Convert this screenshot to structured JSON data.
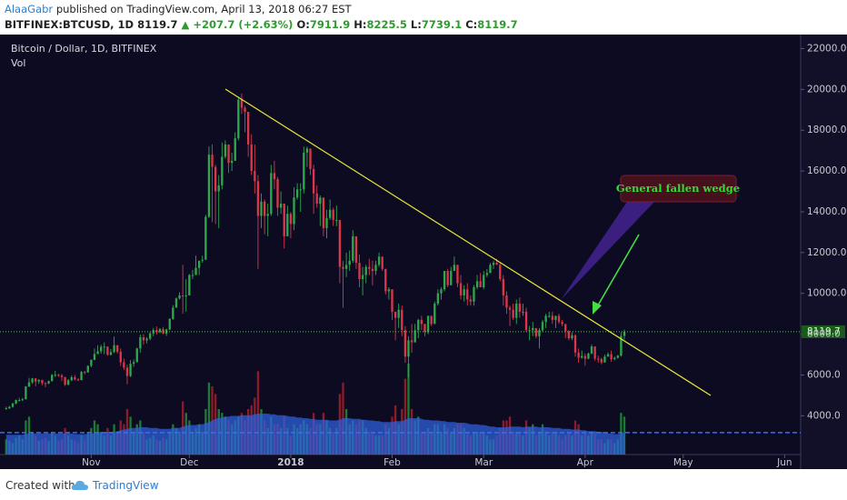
{
  "header": {
    "publisher": "AlaaGabr",
    "published_text": "published on TradingView.com, April 13, 2018 06:27 EST",
    "symbol": "BITFINEX:BTCUSD, 1D",
    "change": "▲ +207.7 (+2.63%)",
    "ohlc_labels": [
      "O:",
      "H:",
      "L:",
      "C:"
    ]
  },
  "footer": {
    "created_with": "Created with",
    "brand": "TradingView"
  },
  "chart_data": {
    "type": "candlestick",
    "title": "Bitcoin / Dollar, 1D, BITFINEX",
    "volume_label": "Vol",
    "annotation": "General fallen wedge",
    "up_color": "#2ea84a",
    "down_color": "#d9374a",
    "volume_up_color": "#1d7a34",
    "volume_down_color": "#8c1c2c",
    "volume_ma_color": "#2f63e0",
    "xlim": [
      -0.5,
      242.9
    ],
    "xticks": [
      {
        "value": 26,
        "label": "Nov"
      },
      {
        "value": 56,
        "label": "Dec"
      },
      {
        "value": 87,
        "label": "2018"
      },
      {
        "value": 118,
        "label": "Feb"
      },
      {
        "value": 146,
        "label": "Mar"
      },
      {
        "value": 177,
        "label": "Apr"
      },
      {
        "value": 207,
        "label": "May"
      },
      {
        "value": 238,
        "label": "Jun"
      }
    ],
    "ylim": [
      2100,
      22600
    ],
    "yticks": [
      {
        "value": 4000,
        "label": "4000.0"
      },
      {
        "value": 6000,
        "label": "6000.0"
      },
      {
        "value": 8000,
        "label": "8000.0"
      },
      {
        "value": 10000,
        "label": "10000.0"
      },
      {
        "value": 12000,
        "label": "12000.0"
      },
      {
        "value": 14000,
        "label": "14000.0"
      },
      {
        "value": 16000,
        "label": "16000.0"
      },
      {
        "value": 18000,
        "label": "18000.0"
      },
      {
        "value": 20000,
        "label": "20000.0"
      },
      {
        "value": 22000,
        "label": "22000.0"
      }
    ],
    "vlim": [
      0,
      150
    ],
    "open": [
      4350,
      4370,
      4440,
      4600,
      4770,
      4770,
      4810,
      5440,
      5640,
      5830,
      5680,
      5750,
      5600,
      5580,
      5700,
      6000,
      6010,
      5980,
      5900,
      5520,
      5740,
      5890,
      5780,
      5750,
      6150,
      6130,
      6450,
      6740,
      7030,
      7160,
      7380,
      7390,
      6990,
      7120,
      7460,
      7140,
      6620,
      6360,
      5950,
      6550,
      6630,
      7300,
      7850,
      7700,
      7780,
      8040,
      8200,
      8100,
      8250,
      8030,
      8230,
      8750,
      9300,
      9750,
      9900,
      9850,
      9900,
      10900,
      10900,
      11250,
      11600,
      11650,
      13750,
      16800,
      16200,
      15000,
      15300,
      16700,
      17300,
      16400,
      16500,
      17600,
      19500,
      19100,
      18900,
      17300,
      16000,
      15500,
      13800,
      14500,
      13800,
      13900,
      15900,
      15600,
      14200,
      14400,
      12800,
      13900,
      13400,
      14700,
      15100,
      15100,
      16900,
      17100,
      16100,
      14900,
      14400,
      14700,
      13200,
      13700,
      14100,
      13600,
      13600,
      11300,
      11200,
      11400,
      11600,
      12800,
      11500,
      10700,
      10900,
      11300,
      11200,
      11100,
      11400,
      11800,
      11200,
      10100,
      10200,
      9100,
      8800,
      9200,
      8200,
      6900,
      7700,
      7600,
      8200,
      8700,
      8500,
      8100,
      8900,
      8500,
      9500,
      10000,
      10200,
      11100,
      10400,
      11100,
      11400,
      10500,
      9900,
      10200,
      9700,
      9600,
      10300,
      10600,
      10300,
      10900,
      11000,
      11400,
      11500,
      11400,
      10700,
      9900,
      9300,
      9200,
      8800,
      9500,
      9100,
      9100,
      8200,
      8200,
      8300,
      7900,
      8200,
      8600,
      8900,
      8900,
      8700,
      8900,
      8600,
      8500,
      8150,
      7800,
      7950,
      7100,
      6850,
      6930,
      6800,
      7050,
      7400,
      6800,
      6780,
      6620,
      6900,
      7020,
      6780,
      6840,
      6950,
      7911.9
    ],
    "high": [
      4450,
      4480,
      4640,
      4800,
      4880,
      4880,
      5450,
      5860,
      5860,
      5850,
      5800,
      5770,
      5650,
      5730,
      6050,
      6200,
      6060,
      6050,
      5900,
      5800,
      5980,
      6000,
      5850,
      6200,
      6200,
      6470,
      6760,
      7300,
      7460,
      7480,
      7600,
      7400,
      7270,
      7880,
      7450,
      7300,
      6800,
      6500,
      6730,
      6760,
      7330,
      7980,
      8000,
      7850,
      8100,
      8300,
      8380,
      8300,
      8350,
      8270,
      8780,
      9430,
      9800,
      10050,
      11400,
      10700,
      10950,
      11150,
      11850,
      11600,
      11850,
      13850,
      17200,
      17300,
      16300,
      15800,
      17400,
      17500,
      17300,
      16900,
      17900,
      19600,
      19800,
      19200,
      18900,
      17800,
      17300,
      15800,
      14900,
      14600,
      14400,
      16300,
      16500,
      15700,
      15000,
      14400,
      14300,
      14000,
      15200,
      15400,
      15400,
      17200,
      17200,
      17100,
      16300,
      15300,
      14800,
      14700,
      14100,
      14600,
      14200,
      14300,
      13600,
      11600,
      12000,
      12100,
      13100,
      12800,
      11900,
      11300,
      11400,
      11700,
      11600,
      11600,
      12000,
      11800,
      11200,
      10300,
      10200,
      9100,
      9500,
      9400,
      8400,
      7900,
      8500,
      8500,
      8750,
      8900,
      8500,
      8900,
      8900,
      9600,
      10200,
      10300,
      11100,
      11200,
      11300,
      11800,
      11400,
      10900,
      10400,
      10500,
      9900,
      10400,
      10900,
      11000,
      11100,
      11200,
      11500,
      11600,
      11700,
      11500,
      10900,
      10100,
      9400,
      9500,
      9700,
      9800,
      9500,
      9300,
      8400,
      8600,
      8300,
      8300,
      8700,
      9000,
      9100,
      9100,
      8900,
      9000,
      8700,
      8500,
      8200,
      8100,
      8000,
      7300,
      7200,
      7050,
      7100,
      7500,
      7400,
      6950,
      6850,
      7000,
      7100,
      7200,
      6900,
      6980,
      8100,
      8225.5
    ],
    "low": [
      4300,
      4330,
      4400,
      4560,
      4700,
      4720,
      4800,
      5400,
      5560,
      5450,
      5570,
      5500,
      5400,
      5550,
      5680,
      5900,
      5900,
      5700,
      5470,
      5500,
      5700,
      5730,
      5700,
      5740,
      6030,
      6110,
      6380,
      6730,
      7020,
      7050,
      7020,
      6950,
      6950,
      7080,
      7050,
      6440,
      6250,
      5550,
      5900,
      6400,
      6610,
      7100,
      7500,
      7550,
      7700,
      7900,
      7980,
      8050,
      8000,
      7920,
      8200,
      8700,
      9300,
      9700,
      9000,
      9100,
      9900,
      10700,
      10900,
      10900,
      11500,
      11650,
      13700,
      13500,
      13400,
      13200,
      15100,
      16600,
      15900,
      16000,
      16500,
      17500,
      18800,
      17900,
      16700,
      15800,
      14900,
      11200,
      13200,
      12900,
      12800,
      13800,
      15100,
      13800,
      13900,
      12200,
      12800,
      12700,
      13100,
      14600,
      14000,
      14900,
      16200,
      15800,
      13900,
      14200,
      13300,
      12800,
      12700,
      13600,
      13300,
      13300,
      10500,
      9300,
      10800,
      11100,
      11500,
      11200,
      10300,
      9900,
      10500,
      10900,
      10400,
      10900,
      11300,
      11100,
      9950,
      9700,
      8700,
      7700,
      8300,
      7900,
      6600,
      5900,
      7100,
      7600,
      7800,
      8200,
      7900,
      8000,
      8400,
      8500,
      9400,
      9700,
      10100,
      10300,
      10400,
      11100,
      10300,
      9700,
      9600,
      9400,
      9400,
      9400,
      10200,
      10300,
      10200,
      10800,
      11000,
      11200,
      11400,
      10600,
      9400,
      9000,
      8400,
      8700,
      8500,
      8800,
      8900,
      8100,
      7700,
      7900,
      7800,
      7300,
      8100,
      8300,
      8800,
      8500,
      8300,
      8500,
      8400,
      7800,
      7700,
      7700,
      6900,
      6600,
      6800,
      6450,
      6770,
      7020,
      6700,
      6600,
      6530,
      6600,
      6900,
      6650,
      6720,
      6800,
      6900,
      7739.1
    ],
    "close": [
      4370,
      4440,
      4600,
      4770,
      4770,
      4810,
      5440,
      5640,
      5830,
      5680,
      5750,
      5600,
      5580,
      5700,
      6000,
      6010,
      5980,
      5900,
      5520,
      5740,
      5890,
      5780,
      5750,
      6150,
      6130,
      6450,
      6740,
      7030,
      7160,
      7380,
      7390,
      6990,
      7120,
      7460,
      7140,
      6620,
      6360,
      5950,
      6550,
      6630,
      7300,
      7850,
      7700,
      7780,
      8040,
      8200,
      8100,
      8250,
      8030,
      8230,
      8750,
      9300,
      9750,
      9900,
      9850,
      9900,
      10900,
      10900,
      11250,
      11600,
      11650,
      13750,
      16800,
      16200,
      15000,
      15300,
      16700,
      17300,
      16400,
      16500,
      17600,
      19500,
      19100,
      18900,
      17300,
      16000,
      15500,
      13800,
      14500,
      13800,
      13900,
      15900,
      15600,
      14200,
      14400,
      12800,
      13900,
      13400,
      14700,
      15100,
      15100,
      16900,
      17100,
      16100,
      14900,
      14400,
      14700,
      13200,
      13700,
      14100,
      13600,
      13600,
      11300,
      11200,
      11400,
      11600,
      12800,
      11500,
      10700,
      10900,
      11300,
      11200,
      11100,
      11400,
      11800,
      11200,
      10100,
      10200,
      9100,
      8800,
      9200,
      8200,
      6900,
      7700,
      7600,
      8200,
      8700,
      8500,
      8100,
      8900,
      8500,
      9500,
      10000,
      10200,
      11100,
      10400,
      11100,
      11400,
      10500,
      9900,
      10200,
      9700,
      9600,
      10300,
      10600,
      10300,
      10900,
      11000,
      11400,
      11500,
      11400,
      10700,
      9900,
      9300,
      9200,
      8800,
      9500,
      9100,
      9100,
      8200,
      8200,
      8300,
      7900,
      8200,
      8600,
      8900,
      8900,
      8700,
      8900,
      8600,
      8500,
      8150,
      7800,
      7950,
      7100,
      6850,
      6930,
      6800,
      7050,
      7400,
      6800,
      6780,
      6620,
      6900,
      7020,
      6780,
      6840,
      6950,
      7912,
      8119.7
    ],
    "volume": [
      20,
      18,
      15,
      22,
      25,
      20,
      45,
      50,
      30,
      25,
      18,
      20,
      22,
      18,
      30,
      25,
      18,
      20,
      35,
      25,
      20,
      18,
      15,
      25,
      20,
      30,
      35,
      45,
      40,
      30,
      25,
      35,
      25,
      40,
      30,
      45,
      40,
      60,
      50,
      30,
      40,
      45,
      30,
      20,
      22,
      25,
      20,
      18,
      22,
      20,
      30,
      40,
      35,
      30,
      70,
      55,
      45,
      30,
      35,
      40,
      30,
      60,
      95,
      90,
      80,
      60,
      55,
      50,
      45,
      40,
      45,
      50,
      55,
      45,
      60,
      65,
      75,
      110,
      60,
      45,
      35,
      50,
      40,
      40,
      35,
      50,
      35,
      25,
      40,
      35,
      40,
      45,
      40,
      35,
      55,
      40,
      40,
      55,
      45,
      35,
      30,
      35,
      80,
      95,
      60,
      40,
      45,
      40,
      45,
      45,
      35,
      30,
      30,
      25,
      25,
      25,
      40,
      35,
      50,
      65,
      40,
      60,
      100,
      120,
      60,
      45,
      50,
      30,
      30,
      35,
      30,
      40,
      40,
      30,
      40,
      35,
      30,
      35,
      40,
      40,
      35,
      30,
      25,
      30,
      30,
      30,
      30,
      25,
      20,
      20,
      25,
      35,
      45,
      45,
      50,
      30,
      30,
      30,
      25,
      45,
      35,
      40,
      25,
      30,
      40,
      30,
      25,
      30,
      30,
      25,
      20,
      25,
      30,
      25,
      45,
      40,
      25,
      30,
      25,
      30,
      30,
      20,
      20,
      15,
      20,
      20,
      15,
      20,
      55,
      50
    ],
    "volume_ma": [
      26,
      26,
      26,
      26,
      26,
      26,
      27,
      28,
      28,
      28,
      28,
      28,
      28,
      28,
      28,
      28,
      28,
      28,
      28,
      28,
      28,
      27,
      27,
      27,
      27,
      27,
      28,
      28,
      29,
      29,
      29,
      30,
      30,
      30,
      31,
      32,
      33,
      34,
      35,
      35,
      35,
      36,
      36,
      36,
      35,
      35,
      35,
      34,
      34,
      34,
      34,
      35,
      35,
      35,
      37,
      38,
      39,
      39,
      39,
      40,
      40,
      41,
      43,
      45,
      47,
      48,
      49,
      50,
      50,
      51,
      51,
      51,
      52,
      52,
      52,
      52,
      53,
      54,
      54,
      54,
      54,
      53,
      53,
      52,
      52,
      52,
      51,
      50,
      50,
      49,
      49,
      48,
      48,
      47,
      47,
      46,
      46,
      46,
      46,
      45,
      45,
      45,
      46,
      48,
      48,
      48,
      47,
      47,
      47,
      46,
      46,
      45,
      45,
      44,
      44,
      43,
      43,
      43,
      43,
      44,
      44,
      44,
      46,
      48,
      48,
      48,
      48,
      47,
      46,
      46,
      45,
      45,
      45,
      44,
      44,
      43,
      43,
      43,
      42,
      42,
      42,
      41,
      40,
      40,
      40,
      39,
      39,
      38,
      37,
      37,
      36,
      36,
      36,
      36,
      37,
      37,
      37,
      37,
      36,
      37,
      37,
      37,
      37,
      36,
      36,
      36,
      36,
      35,
      35,
      35,
      34,
      34,
      34,
      33,
      33,
      33,
      32,
      32,
      31,
      31,
      31,
      30,
      30,
      29,
      28,
      28,
      27,
      27,
      28,
      29
    ]
  }
}
